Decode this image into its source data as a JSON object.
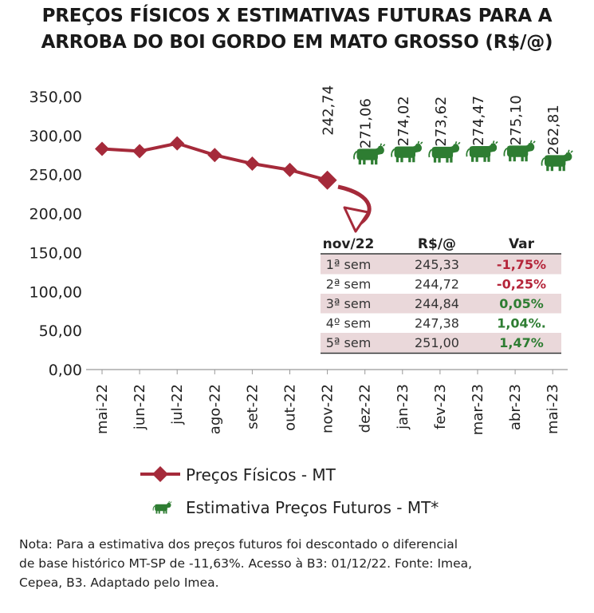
{
  "title_lines": [
    "PREÇOS FÍSICOS X ESTIMATIVAS FUTURAS PARA A",
    "ARROBA DO BOI GORDO EM MATO GROSSO (R$/@)"
  ],
  "chart_data": {
    "type": "line",
    "categories": [
      "mai-22",
      "jun-22",
      "jul-22",
      "ago-22",
      "set-22",
      "out-22",
      "nov-22",
      "dez-22",
      "jan-23",
      "fev-23",
      "mar-23",
      "abr-23",
      "mai-23"
    ],
    "ylim": [
      0,
      350
    ],
    "yticks": [
      "0,00",
      "50,00",
      "100,00",
      "150,00",
      "200,00",
      "250,00",
      "300,00",
      "350,00"
    ],
    "grid": false,
    "legend_position": "bottom",
    "series": [
      {
        "name": "Preços Físicos - MT",
        "color": "#a52a3a",
        "marker": "diamond",
        "values": [
          283,
          280,
          290,
          275,
          264,
          256,
          242.74,
          null,
          null,
          null,
          null,
          null,
          null
        ],
        "labels": [
          null,
          null,
          null,
          null,
          null,
          null,
          "242,74",
          null,
          null,
          null,
          null,
          null,
          null
        ]
      },
      {
        "name": "Estimativa Preços Futuros - MT*",
        "color": "#2e7d32",
        "marker": "cow-icon",
        "values": [
          null,
          null,
          null,
          null,
          null,
          null,
          null,
          271.06,
          274.02,
          273.62,
          274.47,
          275.1,
          262.81
        ],
        "labels": [
          null,
          null,
          null,
          null,
          null,
          null,
          null,
          "271,06",
          "274,02",
          "273,62",
          "274,47",
          "275,10",
          "262,81"
        ]
      }
    ]
  },
  "inset_table": {
    "headers": [
      "nov/22",
      "R$/@",
      "Var"
    ],
    "rows": [
      {
        "period": "1ª sem",
        "price": "245,33",
        "var": "-1,75%",
        "trend": "down"
      },
      {
        "period": "2ª sem",
        "price": "244,72",
        "var": "-0,25%",
        "trend": "down"
      },
      {
        "period": "3ª sem",
        "price": "244,84",
        "var": "0,05%",
        "trend": "up"
      },
      {
        "period": "4º sem",
        "price": "247,38",
        "var": "1,04%.",
        "trend": "up"
      },
      {
        "period": "5ª sem",
        "price": "251,00",
        "var": "1,47%",
        "trend": "up"
      }
    ]
  },
  "note_lines": [
    "Nota: Para a estimativa dos preços futuros foi descontado o diferencial",
    "de base histórico MT-SP de -11,63%. Acesso à B3: 01/12/22. Fonte: Imea,",
    "Cepea, B3. Adaptado pelo Imea."
  ],
  "colors": {
    "physical": "#a52a3a",
    "futures": "#2e7d32",
    "row_shaded": "#ead8da",
    "row_plain": "#ffffff",
    "var_down": "#b5253a",
    "var_up": "#2e7d32",
    "arrow": "#a52a3a"
  }
}
